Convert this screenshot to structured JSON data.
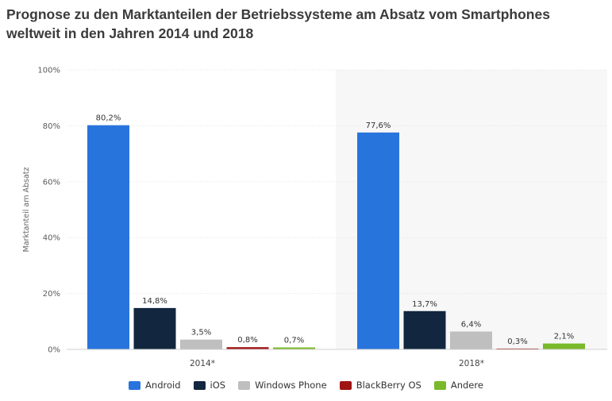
{
  "chart_data": {
    "type": "bar",
    "title": "Prognose zu den Marktanteilen der Betriebssysteme am Absatz vom Smartphones weltweit in den Jahren 2014 und 2018",
    "xlabel": "",
    "ylabel": "Marktanteil am Absatz",
    "ylim": [
      0,
      100
    ],
    "yticks": [
      "0%",
      "20%",
      "40%",
      "60%",
      "80%",
      "100%"
    ],
    "categories": [
      "2014*",
      "2018*"
    ],
    "series": [
      {
        "name": "Android",
        "color": "#2874dd",
        "values": [
          80.2,
          77.6
        ],
        "labels": [
          "80,2%",
          "77,6%"
        ]
      },
      {
        "name": "iOS",
        "color": "#12263f",
        "values": [
          14.8,
          13.7
        ],
        "labels": [
          "14,8%",
          "13,7%"
        ]
      },
      {
        "name": "Windows Phone",
        "color": "#bfbfbf",
        "values": [
          3.5,
          6.4
        ],
        "labels": [
          "3,5%",
          "6,4%"
        ]
      },
      {
        "name": "BlackBerry OS",
        "color": "#a11414",
        "values": [
          0.8,
          0.3
        ],
        "labels": [
          "0,8%",
          "0,3%"
        ]
      },
      {
        "name": "Andere",
        "color": "#7ab929",
        "values": [
          0.7,
          2.1
        ],
        "labels": [
          "0,7%",
          "2,1%"
        ]
      }
    ],
    "grid": true,
    "legend_position": "bottom-center",
    "highlight_category": "2018*"
  }
}
